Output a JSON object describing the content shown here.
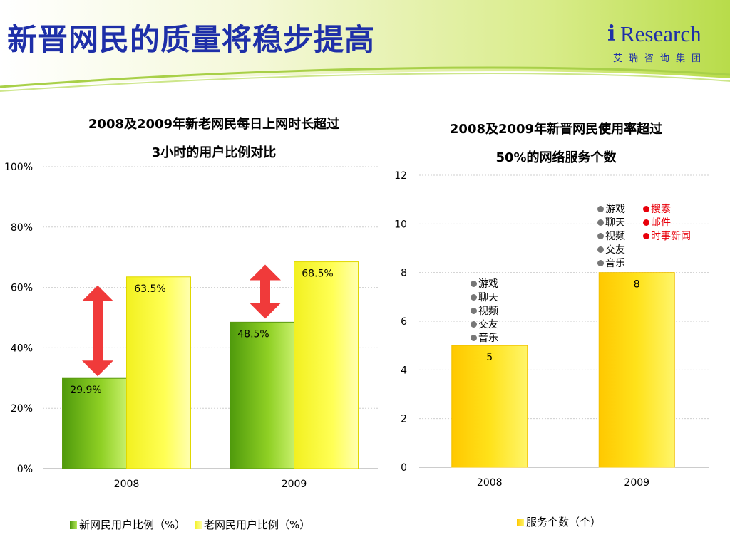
{
  "header": {
    "title": "新晋网民的质量将稳步提高",
    "logo_i": "i",
    "logo_word": "Research",
    "logo_sub": "艾瑞咨询集团"
  },
  "colors": {
    "title_blue": "#1e2fa8",
    "new_user_green": "#7cc21a",
    "old_user_yellow": "#ffff33",
    "service_yellow": "#ffd400",
    "arrow_red": "#f03a3a",
    "annot_red": "#e8000b"
  },
  "chart_data": [
    {
      "type": "bar",
      "title_line1": "2008及2009年新老网民每日上网时长超过",
      "title_line2": "3小时的用户比例对比",
      "categories": [
        "2008",
        "2009"
      ],
      "series": [
        {
          "name": "新网民用户比例（%）",
          "values": [
            29.9,
            48.5
          ]
        },
        {
          "name": "老网民用户比例（%）",
          "values": [
            63.5,
            68.5
          ]
        }
      ],
      "data_labels": [
        [
          "29.9%",
          "48.5%"
        ],
        [
          "63.5%",
          "68.5%"
        ]
      ],
      "ylim": [
        0,
        100
      ],
      "yticks": [
        "0%",
        "20%",
        "40%",
        "60%",
        "80%",
        "100%"
      ],
      "grid": true,
      "legend": "bottom",
      "annotations": "double-headed arrows between new and old user bars"
    },
    {
      "type": "bar",
      "title_line1": "2008及2009年新晋网民使用率超过",
      "title_line2": "50%的网络服务个数",
      "categories": [
        "2008",
        "2009"
      ],
      "series": [
        {
          "name": "服务个数（个）",
          "values": [
            5,
            8
          ]
        }
      ],
      "data_labels": [
        "5",
        "8"
      ],
      "ylim": [
        0,
        12
      ],
      "yticks": [
        "0",
        "2",
        "4",
        "6",
        "8",
        "10",
        "12"
      ],
      "grid": true,
      "legend": "bottom",
      "annotations": {
        "2008": [
          "游戏",
          "聊天",
          "视频",
          "交友",
          "音乐"
        ],
        "2009_grey": [
          "游戏",
          "聊天",
          "视频",
          "交友",
          "音乐"
        ],
        "2009_red": [
          "搜素",
          "邮件",
          "时事新闻"
        ]
      }
    }
  ]
}
